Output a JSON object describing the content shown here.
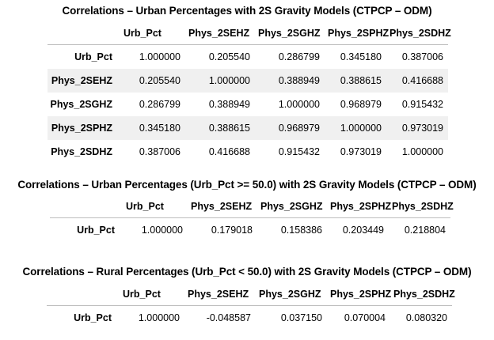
{
  "sections": [
    {
      "title": "Correlations – Urban Percentages with 2S Gravity Models (CTPCP – ODM)",
      "columns": [
        "Urb_Pct",
        "Phys_2SEHZ",
        "Phys_2SGHZ",
        "Phys_2SPHZ",
        "Phys_2SDHZ"
      ],
      "rows": [
        {
          "label": "Urb_Pct",
          "values": [
            "1.000000",
            "0.205540",
            "0.286799",
            "0.345180",
            "0.387006"
          ]
        },
        {
          "label": "Phys_2SEHZ",
          "values": [
            "0.205540",
            "1.000000",
            "0.388949",
            "0.388615",
            "0.416688"
          ]
        },
        {
          "label": "Phys_2SGHZ",
          "values": [
            "0.286799",
            "0.388949",
            "1.000000",
            "0.968979",
            "0.915432"
          ]
        },
        {
          "label": "Phys_2SPHZ",
          "values": [
            "0.345180",
            "0.388615",
            "0.968979",
            "1.000000",
            "0.973019"
          ]
        },
        {
          "label": "Phys_2SDHZ",
          "values": [
            "0.387006",
            "0.416688",
            "0.915432",
            "0.973019",
            "1.000000"
          ]
        }
      ]
    },
    {
      "title": "Correlations – Urban Percentages (Urb_Pct >= 50.0) with 2S Gravity Models (CTPCP – ODM)",
      "columns": [
        "Urb_Pct",
        "Phys_2SEHZ",
        "Phys_2SGHZ",
        "Phys_2SPHZ",
        "Phys_2SDHZ"
      ],
      "rows": [
        {
          "label": "Urb_Pct",
          "values": [
            "1.000000",
            "0.179018",
            "0.158386",
            "0.203449",
            "0.218804"
          ]
        }
      ]
    },
    {
      "title": "Correlations – Rural Percentages (Urb_Pct < 50.0) with 2S Gravity Models (CTPCP – ODM)",
      "columns": [
        "Urb_Pct",
        "Phys_2SEHZ",
        "Phys_2SGHZ",
        "Phys_2SPHZ",
        "Phys_2SDHZ"
      ],
      "rows": [
        {
          "label": "Urb_Pct",
          "values": [
            "1.000000",
            "-0.048587",
            "0.037150",
            "0.070004",
            "0.080320"
          ]
        }
      ]
    }
  ],
  "colors": {
    "row_shade": "#f0f0f0",
    "rule": "#bdbdbd"
  }
}
